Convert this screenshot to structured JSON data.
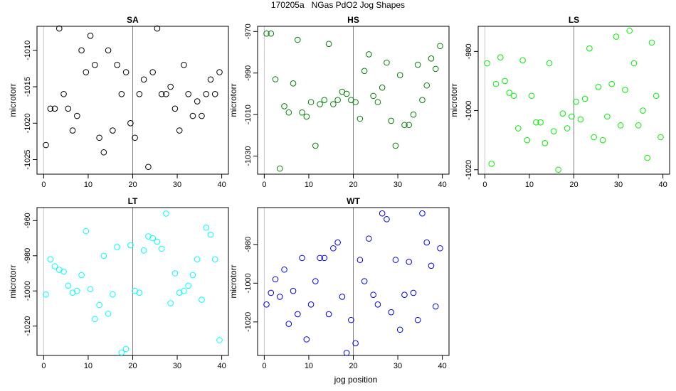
{
  "figure": {
    "title": "170205a   NGas PdO2 Jog Shapes",
    "xlabel": "jog position"
  },
  "chart_data": [
    {
      "type": "scatter",
      "title": "SA",
      "ylabel": "microtorr",
      "color": "#000000",
      "xlim": [
        -1.5,
        41.5
      ],
      "ylim": [
        -1027,
        -1006.7
      ],
      "xticks": [
        0,
        10,
        20,
        30,
        40
      ],
      "yticks": [
        -1025,
        -1020,
        -1015,
        -1010
      ],
      "vlines": [
        20
      ],
      "x": [
        0.5,
        1.5,
        2.5,
        3.5,
        4.5,
        5.5,
        6.5,
        7.5,
        8.5,
        9.5,
        10.5,
        11.5,
        12.5,
        13.5,
        14.5,
        15.5,
        16.5,
        17.5,
        18.5,
        19.5,
        20.5,
        21.5,
        22.5,
        23.5,
        24.5,
        25.5,
        26.5,
        27.5,
        28.5,
        29.5,
        30.5,
        31.5,
        32.5,
        33.5,
        34.5,
        35.5,
        36.5,
        37.5,
        38.5,
        39.5
      ],
      "y": [
        -1023,
        -1018,
        -1018,
        -1007,
        -1016,
        -1018,
        -1021,
        -1019,
        -1010,
        -1013,
        -1008,
        -1012,
        -1022,
        -1024,
        -1010,
        -1021,
        -1012,
        -1016,
        -1013,
        -1020,
        -1022,
        -1016,
        -1014,
        -1026,
        -1013,
        -1007,
        -1016,
        -1016,
        -1015,
        -1018,
        -1021,
        -1012,
        -1016,
        -1019,
        -1017,
        -1019,
        -1016,
        -1014,
        -1016,
        -1013
      ]
    },
    {
      "type": "scatter",
      "title": "HS",
      "ylabel": "microtorr",
      "color": "#008000",
      "xlim": [
        -1.5,
        41.5
      ],
      "ylim": [
        -1038.7,
        -967.5
      ],
      "xticks": [
        0,
        10,
        20,
        30,
        40
      ],
      "yticks": [
        -1030,
        -1010,
        -990,
        -970
      ],
      "vlines": [
        20
      ],
      "x": [
        0.5,
        1.5,
        2.5,
        3.5,
        4.5,
        5.5,
        6.5,
        7.5,
        8.5,
        9.5,
        10.5,
        11.5,
        12.5,
        13.5,
        14.5,
        15.5,
        16.5,
        17.5,
        18.5,
        19.5,
        20.5,
        21.5,
        22.5,
        23.5,
        24.5,
        25.5,
        26.5,
        27.5,
        28.5,
        29.5,
        30.5,
        31.5,
        32.5,
        33.5,
        34.5,
        35.5,
        36.5,
        37.5,
        38.5,
        39.5
      ],
      "y": [
        -971,
        -971,
        -993,
        -1036,
        -1006,
        -1009,
        -995,
        -974,
        -1009,
        -1011,
        -1004,
        -1025,
        -1005,
        -1003,
        -976,
        -1005,
        -1003,
        -999,
        -1000,
        -1003,
        -1004,
        -1012,
        -989,
        -981,
        -1001,
        -1004,
        -997,
        -985,
        -1013,
        -1025,
        -991,
        -1015,
        -1015,
        -1010,
        -986,
        -1003,
        -996,
        -983,
        -988,
        -977
      ]
    },
    {
      "type": "scatter",
      "title": "LS",
      "ylabel": "microtorr",
      "color": "#00ee00",
      "xlim": [
        -1.5,
        41.5
      ],
      "ylim": [
        -1021.5,
        -971.5
      ],
      "xticks": [
        0,
        10,
        20,
        30,
        40
      ],
      "yticks": [
        -1020,
        -1000,
        -980
      ],
      "vlines": [
        20
      ],
      "x": [
        0.5,
        1.5,
        2.5,
        3.5,
        4.5,
        5.5,
        6.5,
        7.5,
        8.5,
        9.5,
        10.5,
        11.5,
        12.5,
        13.5,
        14.5,
        15.5,
        16.5,
        17.5,
        18.5,
        19.5,
        20.5,
        21.5,
        22.5,
        23.5,
        24.5,
        25.5,
        26.5,
        27.5,
        28.5,
        29.5,
        30.5,
        31.5,
        32.5,
        33.5,
        34.5,
        35.5,
        36.5,
        37.5,
        38.5,
        39.5
      ],
      "y": [
        -984,
        -1018,
        -991,
        -982,
        -990,
        -994,
        -995,
        -1006,
        -983,
        -1010,
        -995,
        -1004,
        -1004,
        -1011,
        -984,
        -1007,
        -1020,
        -1001,
        -1006,
        -1002,
        -997,
        -1003,
        -996,
        -979,
        -1009,
        -992,
        -1010,
        -1002,
        -991,
        -975,
        -1005,
        -993,
        -973,
        -984,
        -1005,
        -1000,
        -1016,
        -977,
        -995,
        -1009
      ]
    },
    {
      "type": "scatter",
      "title": "LT",
      "ylabel": "microtorr",
      "color": "#00ffff",
      "xlim": [
        -1.5,
        41.5
      ],
      "ylim": [
        -1036.7,
        -952.6
      ],
      "xticks": [
        0,
        10,
        20,
        30,
        40
      ],
      "yticks": [
        -1020,
        -1000,
        -980,
        -960
      ],
      "vlines": [
        20
      ],
      "x": [
        0.5,
        1.5,
        2.5,
        3.5,
        4.5,
        5.5,
        6.5,
        7.5,
        8.5,
        9.5,
        10.5,
        11.5,
        12.5,
        13.5,
        14.5,
        15.5,
        16.5,
        17.5,
        18.5,
        19.5,
        20.5,
        21.5,
        22.5,
        23.5,
        24.5,
        25.5,
        26.5,
        27.5,
        28.5,
        29.5,
        30.5,
        31.5,
        32.5,
        33.5,
        34.5,
        35.5,
        36.5,
        37.5,
        38.5,
        39.5
      ],
      "y": [
        -1002,
        -982,
        -986,
        -988,
        -989,
        -997,
        -1001,
        -1000,
        -991,
        -966,
        -999,
        -1016,
        -1008,
        -980,
        -1013,
        -1002,
        -975,
        -1035,
        -1033,
        -974,
        -1000,
        -1001,
        -977,
        -969,
        -970,
        -972,
        -976,
        -956,
        -1007,
        -990,
        -1001,
        -1000,
        -997,
        -991,
        -982,
        -1005,
        -964,
        -968,
        -982,
        -1028
      ]
    },
    {
      "type": "scatter",
      "title": "WT",
      "ylabel": "microtorr",
      "color": "#0000ee",
      "xlim": [
        -1.5,
        41.5
      ],
      "ylim": [
        -1037.3,
        -961
      ],
      "xticks": [
        0,
        10,
        20,
        30,
        40
      ],
      "yticks": [
        -1020,
        -1000,
        -980
      ],
      "vlines": [
        20
      ],
      "x": [
        0.5,
        1.5,
        2.5,
        3.5,
        4.5,
        5.5,
        6.5,
        7.5,
        8.5,
        9.5,
        10.5,
        11.5,
        12.5,
        13.5,
        14.5,
        15.5,
        16.5,
        17.5,
        18.5,
        19.5,
        20.5,
        21.5,
        22.5,
        23.5,
        24.5,
        25.5,
        26.5,
        27.5,
        28.5,
        29.5,
        30.5,
        31.5,
        32.5,
        33.5,
        34.5,
        35.5,
        36.5,
        37.5,
        38.5,
        39.5
      ],
      "y": [
        -1011,
        -1005,
        -998,
        -1007,
        -993,
        -1021,
        -1004,
        -1016,
        -987,
        -1029,
        -1011,
        -999,
        -987,
        -987,
        -1016,
        -982,
        -979,
        -1007,
        -1036,
        -1019,
        -1031,
        -988,
        -999,
        -977,
        -1006,
        -1011,
        -964,
        -967,
        -1015,
        -988,
        -1024,
        -1006,
        -989,
        -1005,
        -1019,
        -964,
        -979,
        -991,
        -1012,
        -982
      ]
    }
  ]
}
